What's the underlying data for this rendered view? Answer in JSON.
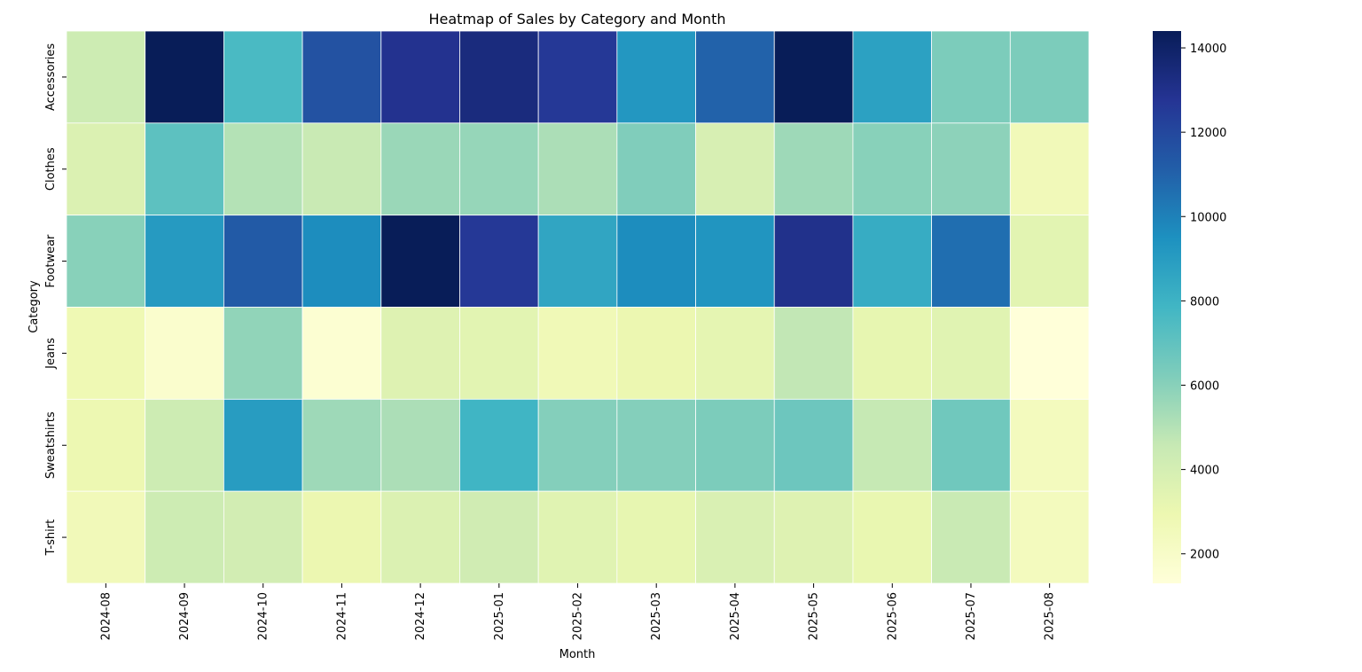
{
  "chart_data": {
    "type": "heatmap",
    "title": "Heatmap of Sales by Category and Month",
    "xlabel": "Month",
    "ylabel": "Category",
    "x_categories": [
      "2024-08",
      "2024-09",
      "2024-10",
      "2024-11",
      "2024-12",
      "2025-01",
      "2025-02",
      "2025-03",
      "2025-04",
      "2025-05",
      "2025-06",
      "2025-07",
      "2025-08"
    ],
    "y_categories": [
      "Accessories",
      "Clothes",
      "Footwear",
      "Jeans",
      "Sweatshirts",
      "T-shirt"
    ],
    "values": [
      [
        4300,
        14400,
        7600,
        11600,
        12900,
        13400,
        12600,
        9200,
        11000,
        14400,
        8800,
        6300,
        6300
      ],
      [
        3700,
        7100,
        5000,
        4500,
        5600,
        5700,
        5200,
        6200,
        3900,
        5500,
        6000,
        5900,
        2600
      ],
      [
        6000,
        9100,
        11300,
        9600,
        14400,
        12600,
        8600,
        9600,
        9300,
        13000,
        8300,
        10600,
        3400
      ],
      [
        2800,
        1800,
        5800,
        1600,
        3600,
        3400,
        2700,
        3000,
        3300,
        4700,
        3200,
        3500,
        1300
      ],
      [
        2900,
        4300,
        9000,
        5500,
        5200,
        7900,
        6100,
        6100,
        6300,
        6700,
        4600,
        6600,
        2400
      ],
      [
        2600,
        4300,
        4100,
        3000,
        3700,
        4200,
        3500,
        3200,
        3800,
        3600,
        3100,
        4500,
        2400
      ]
    ],
    "colorbar": {
      "min": 1300,
      "max": 14400,
      "ticks": [
        2000,
        4000,
        6000,
        8000,
        10000,
        12000,
        14000
      ],
      "colormap": "YlGnBu",
      "stops": [
        "#ffffd9",
        "#edf8b1",
        "#c7e9b4",
        "#7fcdbb",
        "#41b6c4",
        "#1d91c0",
        "#225ea8",
        "#253494",
        "#081d58"
      ]
    },
    "cell_border_color": "#ffffff",
    "grid": false,
    "legend": "colorbar-right"
  }
}
